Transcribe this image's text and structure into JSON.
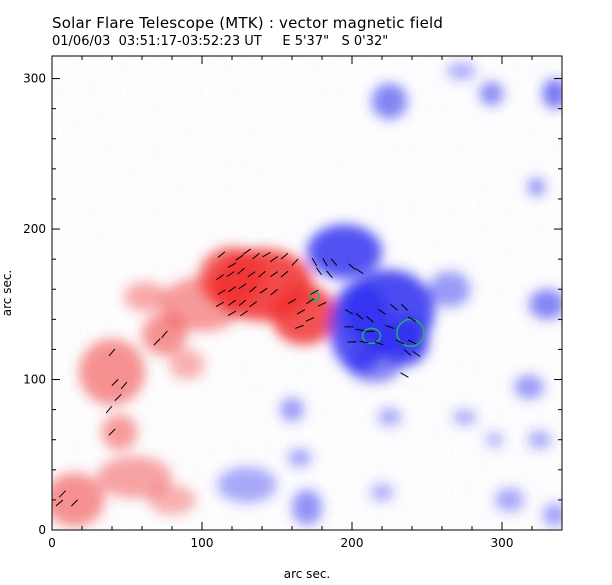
{
  "header": {
    "title": "Solar Flare Telescope (MTK) : vector magnetic field",
    "subtitle": "01/06/03  03:51:17-03:52:23 UT     E 5'37\"   S 0'32\""
  },
  "chart_data": {
    "type": "heatmap",
    "title": "Solar Flare Telescope (MTK) : vector magnetic field",
    "subtitle": "01/06/03  03:51:17-03:52:23 UT     E 5'37\"   S 0'32\"",
    "xlabel": "arc sec.",
    "ylabel": "arc sec.",
    "xlim": [
      0,
      340
    ],
    "ylim": [
      0,
      315
    ],
    "x_ticks": [
      0,
      100,
      200,
      300
    ],
    "y_ticks": [
      0,
      100,
      200,
      300
    ],
    "colors": {
      "positive": "#f03030",
      "negative": "#3030f0",
      "vectors": "#000000",
      "contour": "#20b070"
    },
    "positive_regions": [
      {
        "x": 140,
        "y": 163,
        "rx": 34,
        "ry": 24,
        "strength": 0.95
      },
      {
        "x": 168,
        "y": 143,
        "rx": 22,
        "ry": 20,
        "strength": 0.9
      },
      {
        "x": 120,
        "y": 168,
        "rx": 22,
        "ry": 20,
        "strength": 0.8
      },
      {
        "x": 100,
        "y": 150,
        "rx": 28,
        "ry": 18,
        "strength": 0.45
      },
      {
        "x": 75,
        "y": 130,
        "rx": 15,
        "ry": 14,
        "strength": 0.5
      },
      {
        "x": 62,
        "y": 155,
        "rx": 14,
        "ry": 10,
        "strength": 0.35
      },
      {
        "x": 40,
        "y": 105,
        "rx": 22,
        "ry": 22,
        "strength": 0.5
      },
      {
        "x": 45,
        "y": 65,
        "rx": 12,
        "ry": 12,
        "strength": 0.45
      },
      {
        "x": 55,
        "y": 35,
        "rx": 25,
        "ry": 14,
        "strength": 0.4
      },
      {
        "x": 15,
        "y": 20,
        "rx": 20,
        "ry": 18,
        "strength": 0.5
      },
      {
        "x": 80,
        "y": 20,
        "rx": 16,
        "ry": 10,
        "strength": 0.3
      },
      {
        "x": 90,
        "y": 110,
        "rx": 12,
        "ry": 10,
        "strength": 0.3
      }
    ],
    "negative_regions": [
      {
        "x": 225,
        "y": 145,
        "rx": 30,
        "ry": 28,
        "strength": 0.95
      },
      {
        "x": 205,
        "y": 135,
        "rx": 20,
        "ry": 30,
        "strength": 0.9
      },
      {
        "x": 195,
        "y": 185,
        "rx": 25,
        "ry": 18,
        "strength": 0.9
      },
      {
        "x": 235,
        "y": 125,
        "rx": 16,
        "ry": 16,
        "strength": 0.95
      },
      {
        "x": 215,
        "y": 110,
        "rx": 18,
        "ry": 12,
        "strength": 0.6
      },
      {
        "x": 265,
        "y": 160,
        "rx": 14,
        "ry": 12,
        "strength": 0.45
      },
      {
        "x": 225,
        "y": 285,
        "rx": 12,
        "ry": 12,
        "strength": 0.6
      },
      {
        "x": 293,
        "y": 290,
        "rx": 8,
        "ry": 8,
        "strength": 0.55
      },
      {
        "x": 335,
        "y": 290,
        "rx": 8,
        "ry": 10,
        "strength": 0.7
      },
      {
        "x": 330,
        "y": 150,
        "rx": 12,
        "ry": 10,
        "strength": 0.6
      },
      {
        "x": 323,
        "y": 228,
        "rx": 6,
        "ry": 6,
        "strength": 0.5
      },
      {
        "x": 318,
        "y": 95,
        "rx": 10,
        "ry": 8,
        "strength": 0.45
      },
      {
        "x": 325,
        "y": 60,
        "rx": 8,
        "ry": 6,
        "strength": 0.35
      },
      {
        "x": 273,
        "y": 305,
        "rx": 10,
        "ry": 6,
        "strength": 0.3
      },
      {
        "x": 305,
        "y": 20,
        "rx": 10,
        "ry": 8,
        "strength": 0.35
      },
      {
        "x": 170,
        "y": 15,
        "rx": 10,
        "ry": 12,
        "strength": 0.5
      },
      {
        "x": 130,
        "y": 30,
        "rx": 20,
        "ry": 12,
        "strength": 0.35
      },
      {
        "x": 160,
        "y": 80,
        "rx": 8,
        "ry": 8,
        "strength": 0.45
      },
      {
        "x": 165,
        "y": 48,
        "rx": 8,
        "ry": 6,
        "strength": 0.4
      },
      {
        "x": 225,
        "y": 75,
        "rx": 8,
        "ry": 6,
        "strength": 0.35
      },
      {
        "x": 275,
        "y": 75,
        "rx": 8,
        "ry": 5,
        "strength": 0.35
      },
      {
        "x": 295,
        "y": 60,
        "rx": 6,
        "ry": 5,
        "strength": 0.3
      },
      {
        "x": 220,
        "y": 25,
        "rx": 8,
        "ry": 6,
        "strength": 0.3
      },
      {
        "x": 335,
        "y": 10,
        "rx": 8,
        "ry": 8,
        "strength": 0.4
      }
    ],
    "vectors": [
      {
        "x": 113,
        "y": 183,
        "angle": 40
      },
      {
        "x": 120,
        "y": 176,
        "angle": 30
      },
      {
        "x": 125,
        "y": 181,
        "angle": 35
      },
      {
        "x": 130,
        "y": 185,
        "angle": 35
      },
      {
        "x": 136,
        "y": 182,
        "angle": 40
      },
      {
        "x": 143,
        "y": 183,
        "angle": 30
      },
      {
        "x": 148,
        "y": 180,
        "angle": 35
      },
      {
        "x": 155,
        "y": 182,
        "angle": 40
      },
      {
        "x": 162,
        "y": 178,
        "angle": 45
      },
      {
        "x": 112,
        "y": 168,
        "angle": 35
      },
      {
        "x": 119,
        "y": 170,
        "angle": 35
      },
      {
        "x": 126,
        "y": 172,
        "angle": 40
      },
      {
        "x": 133,
        "y": 170,
        "angle": 35
      },
      {
        "x": 140,
        "y": 170,
        "angle": 40
      },
      {
        "x": 148,
        "y": 170,
        "angle": 35
      },
      {
        "x": 155,
        "y": 170,
        "angle": 40
      },
      {
        "x": 113,
        "y": 158,
        "angle": 30
      },
      {
        "x": 120,
        "y": 160,
        "angle": 35
      },
      {
        "x": 127,
        "y": 162,
        "angle": 35
      },
      {
        "x": 134,
        "y": 160,
        "angle": 40
      },
      {
        "x": 141,
        "y": 159,
        "angle": 35
      },
      {
        "x": 148,
        "y": 158,
        "angle": 40
      },
      {
        "x": 112,
        "y": 150,
        "angle": 30
      },
      {
        "x": 120,
        "y": 151,
        "angle": 35
      },
      {
        "x": 127,
        "y": 151,
        "angle": 40
      },
      {
        "x": 134,
        "y": 150,
        "angle": 35
      },
      {
        "x": 120,
        "y": 144,
        "angle": 30
      },
      {
        "x": 128,
        "y": 144,
        "angle": 35
      },
      {
        "x": 160,
        "y": 152,
        "angle": 30
      },
      {
        "x": 166,
        "y": 145,
        "angle": 30
      },
      {
        "x": 172,
        "y": 152,
        "angle": 35
      },
      {
        "x": 165,
        "y": 135,
        "angle": 20
      },
      {
        "x": 172,
        "y": 140,
        "angle": 25
      },
      {
        "x": 175,
        "y": 158,
        "angle": 30
      },
      {
        "x": 180,
        "y": 150,
        "angle": 25
      },
      {
        "x": 175,
        "y": 178,
        "angle": -60
      },
      {
        "x": 182,
        "y": 178,
        "angle": -60
      },
      {
        "x": 188,
        "y": 178,
        "angle": -50
      },
      {
        "x": 178,
        "y": 172,
        "angle": -55
      },
      {
        "x": 185,
        "y": 170,
        "angle": -50
      },
      {
        "x": 200,
        "y": 175,
        "angle": -40
      },
      {
        "x": 205,
        "y": 172,
        "angle": -35
      },
      {
        "x": 198,
        "y": 145,
        "angle": -30
      },
      {
        "x": 205,
        "y": 142,
        "angle": -40
      },
      {
        "x": 212,
        "y": 140,
        "angle": -40
      },
      {
        "x": 220,
        "y": 145,
        "angle": -35
      },
      {
        "x": 228,
        "y": 148,
        "angle": -40
      },
      {
        "x": 235,
        "y": 148,
        "angle": -45
      },
      {
        "x": 198,
        "y": 135,
        "angle": 0
      },
      {
        "x": 205,
        "y": 133,
        "angle": -10
      },
      {
        "x": 212,
        "y": 132,
        "angle": 0
      },
      {
        "x": 225,
        "y": 135,
        "angle": -20
      },
      {
        "x": 240,
        "y": 140,
        "angle": -30
      },
      {
        "x": 200,
        "y": 125,
        "angle": 0
      },
      {
        "x": 208,
        "y": 125,
        "angle": -10
      },
      {
        "x": 218,
        "y": 124,
        "angle": -20
      },
      {
        "x": 232,
        "y": 125,
        "angle": -30
      },
      {
        "x": 240,
        "y": 125,
        "angle": -25
      },
      {
        "x": 237,
        "y": 118,
        "angle": -40
      },
      {
        "x": 243,
        "y": 117,
        "angle": -35
      },
      {
        "x": 235,
        "y": 103,
        "angle": -30
      },
      {
        "x": 40,
        "y": 118,
        "angle": 50
      },
      {
        "x": 42,
        "y": 98,
        "angle": 45
      },
      {
        "x": 48,
        "y": 96,
        "angle": 50
      },
      {
        "x": 44,
        "y": 88,
        "angle": 45
      },
      {
        "x": 38,
        "y": 80,
        "angle": 50
      },
      {
        "x": 40,
        "y": 65,
        "angle": 45
      },
      {
        "x": 7,
        "y": 24,
        "angle": 45
      },
      {
        "x": 15,
        "y": 18,
        "angle": 45
      },
      {
        "x": 5,
        "y": 18,
        "angle": 40
      },
      {
        "x": 70,
        "y": 125,
        "angle": 45
      },
      {
        "x": 75,
        "y": 130,
        "angle": 50
      }
    ],
    "contours": [
      {
        "x": 213,
        "y": 129,
        "rx": 6,
        "ry": 5
      },
      {
        "x": 239,
        "y": 131,
        "rx": 9,
        "ry": 9
      },
      {
        "x": 175,
        "y": 155,
        "rx": 3,
        "ry": 3
      }
    ]
  }
}
